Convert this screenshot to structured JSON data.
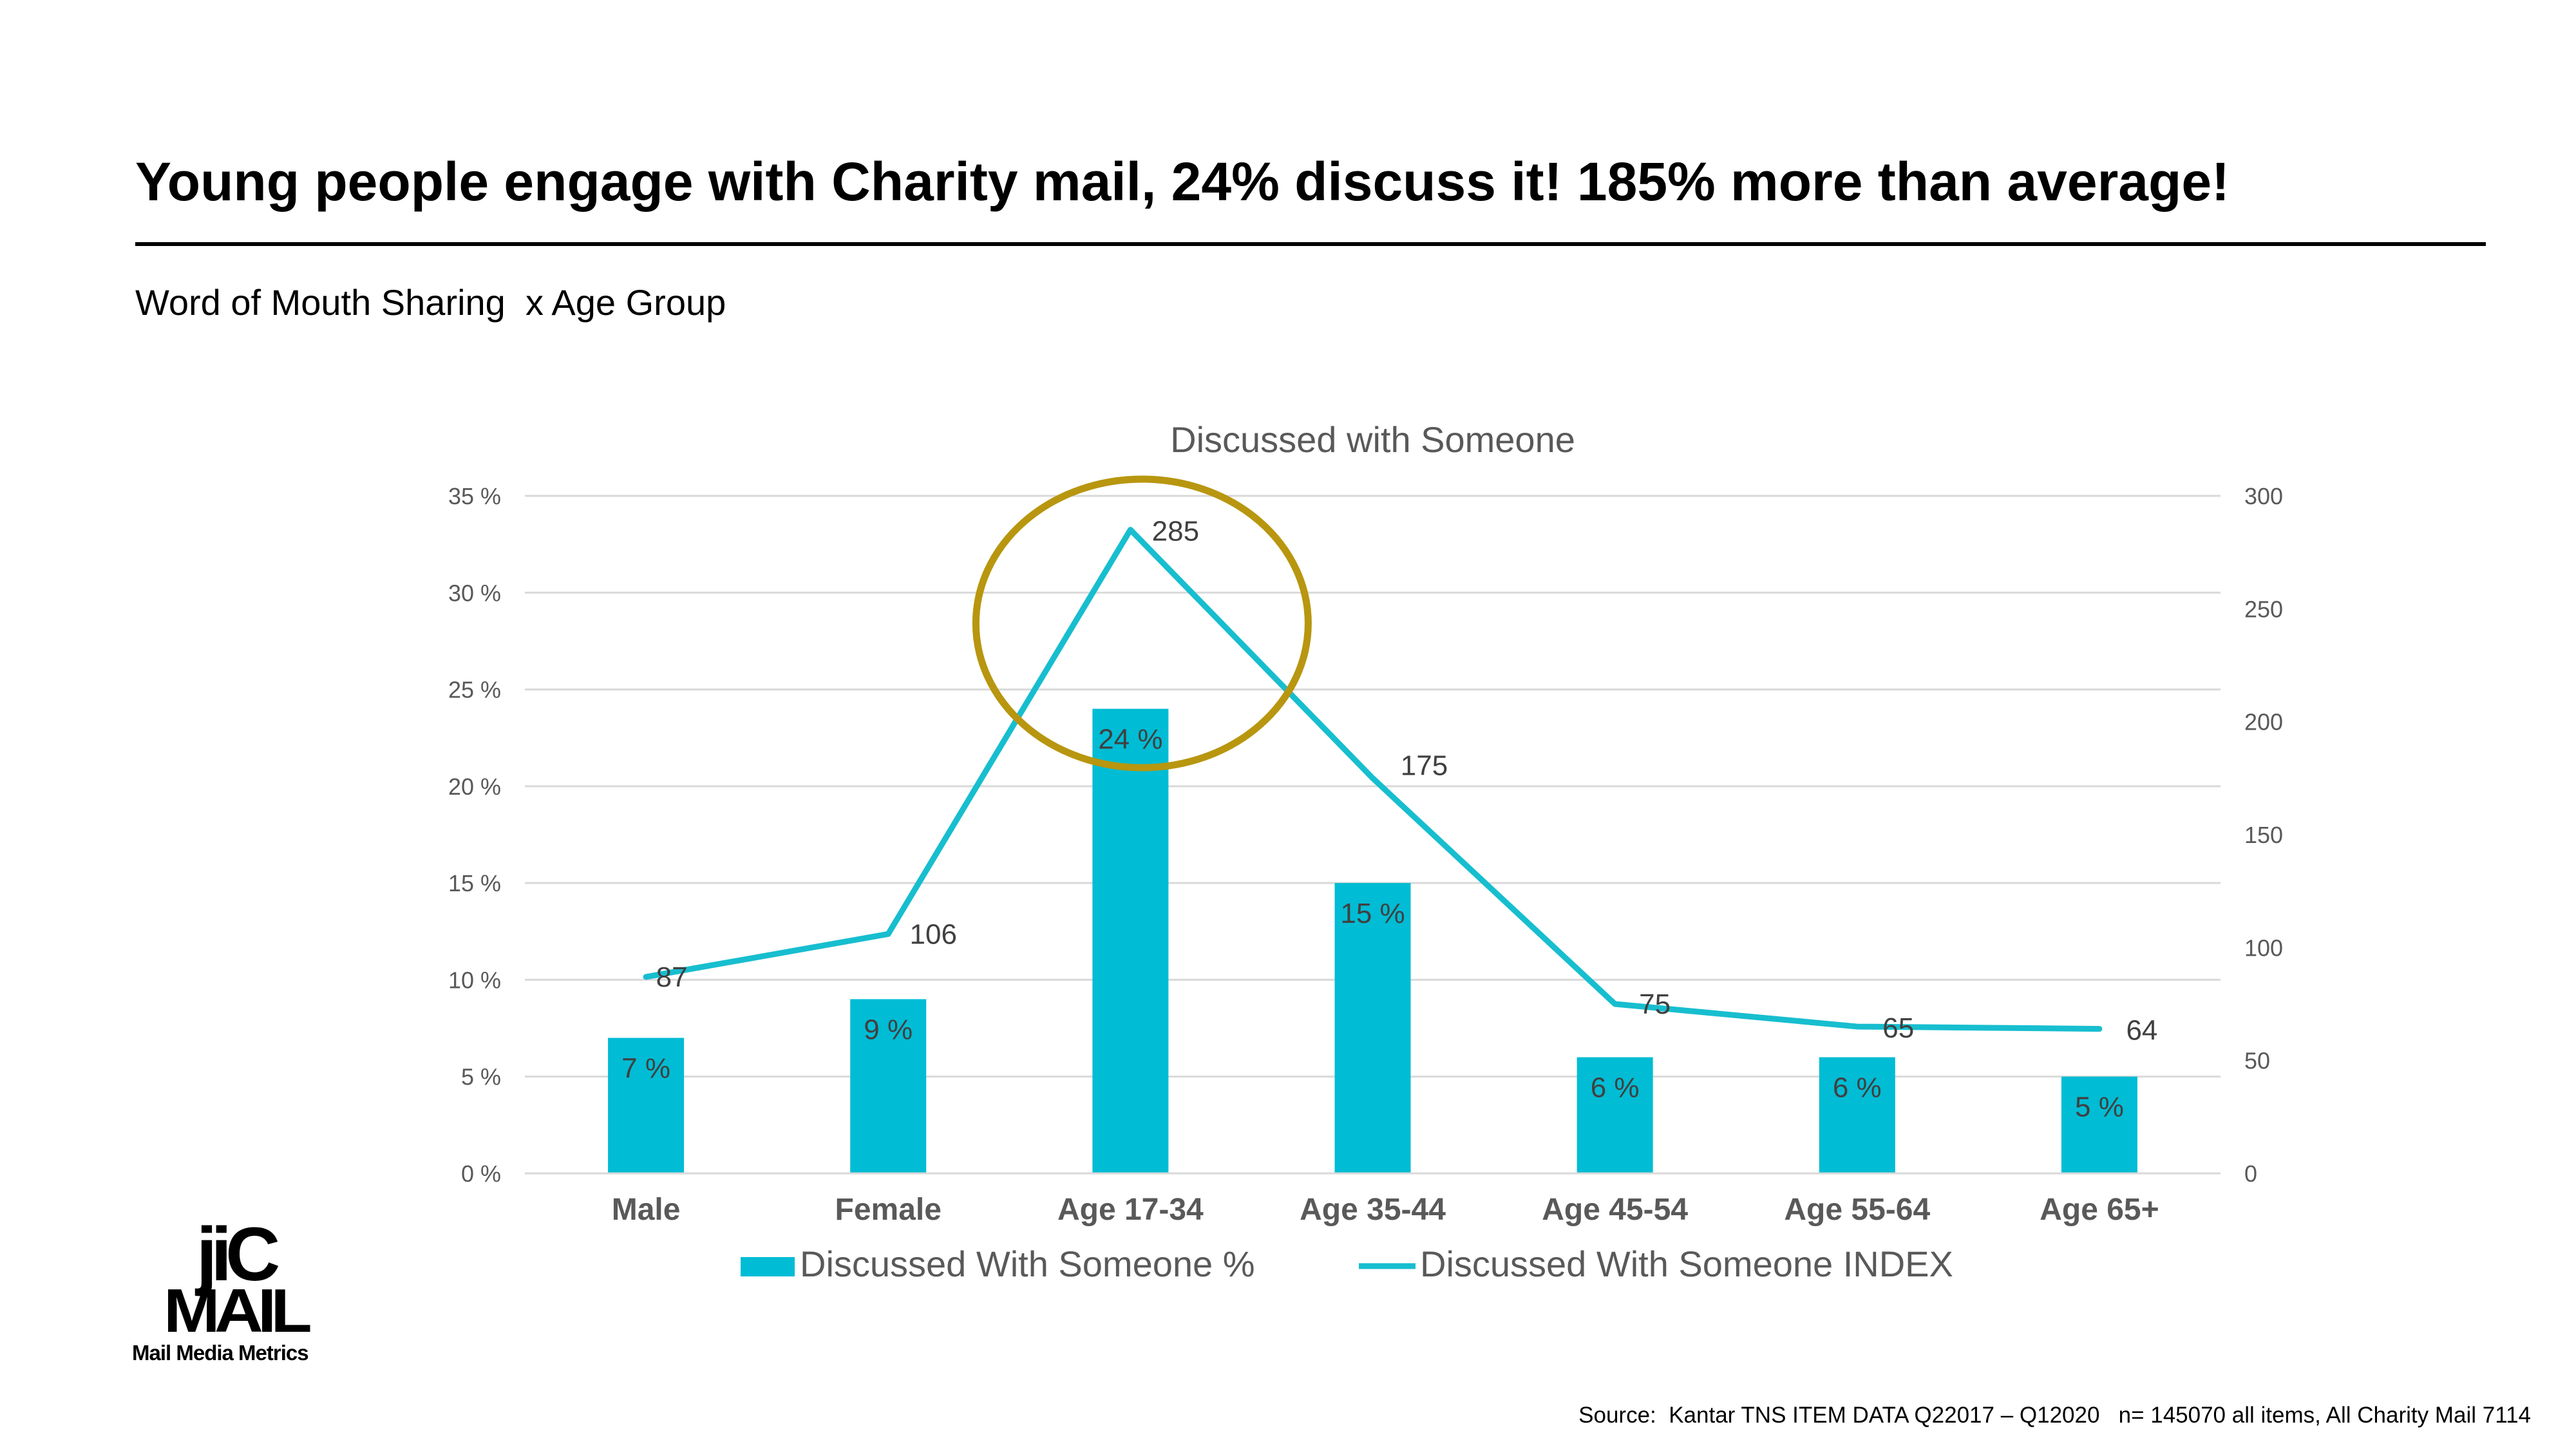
{
  "header": {
    "title": "Young people engage with Charity mail, 24% discuss it! 185% more than average!",
    "subtitle": "Word of Mouth Sharing  x Age Group"
  },
  "footer": {
    "source": "Source:  Kantar TNS ITEM DATA Q22017 – Q12020   n= 145070 all items, All Charity Mail 7114",
    "logo_text_top": "jiC",
    "logo_text_bottom": "MAIL",
    "logo_caption": "Mail Media Metrics"
  },
  "colors": {
    "bar": "#00bcd4",
    "line": "#17becf",
    "highlight_circle": "#b8960f",
    "grid": "#d9d9d9",
    "axis_text": "#595959"
  },
  "chart_data": {
    "type": "bar+line",
    "title": "Discussed with Someone",
    "categories": [
      "Male",
      "Female",
      "Age 17-34",
      "Age 35-44",
      "Age 45-54",
      "Age 55-64",
      "Age 65+"
    ],
    "series": [
      {
        "name": "Discussed With Someone %",
        "type": "bar",
        "axis": "left",
        "values": [
          7,
          9,
          24,
          15,
          6,
          6,
          5
        ],
        "labels": [
          "7 %",
          "9 %",
          "24 %",
          "15 %",
          "6 %",
          "6 %",
          "5 %"
        ]
      },
      {
        "name": "Discussed With Someone INDEX",
        "type": "line",
        "axis": "right",
        "values": [
          87,
          106,
          285,
          175,
          75,
          65,
          64
        ],
        "labels": [
          "87",
          "106",
          "285",
          "175",
          "75",
          "65",
          "64"
        ]
      }
    ],
    "y_left": {
      "ylim": [
        0,
        35
      ],
      "ticks": [
        "0 %",
        "5 %",
        "10 %",
        "15 %",
        "20 %",
        "25 %",
        "30 %",
        "35 %"
      ]
    },
    "y_right": {
      "ylim": [
        0,
        300
      ],
      "ticks": [
        "0",
        "50",
        "100",
        "150",
        "200",
        "250",
        "300"
      ]
    },
    "grid": true,
    "legend_position": "bottom",
    "highlight": "Age 17-34"
  }
}
